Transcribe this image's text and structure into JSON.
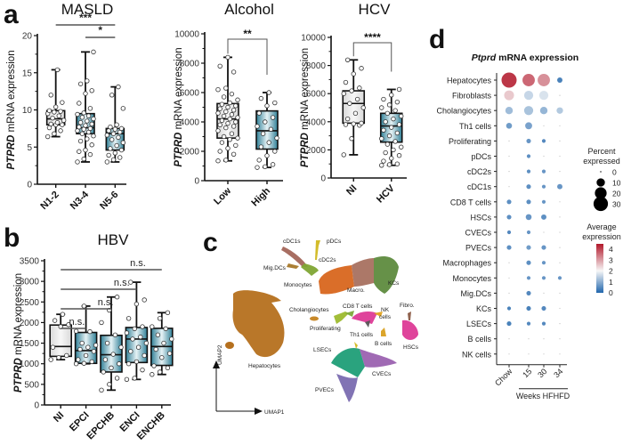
{
  "panel_letters": {
    "a": "a",
    "b": "b",
    "c": "c",
    "d": "d"
  },
  "chart_data": [
    {
      "id": "masld",
      "panel": "a",
      "type": "box",
      "title": "MASLD",
      "ylabel_italic": "PTPRD",
      "ylabel_rest": " mRNA expression",
      "ylim": [
        0,
        20
      ],
      "yticks": [
        0,
        5,
        10,
        15,
        20
      ],
      "categories": [
        "N1-2",
        "N3-4",
        "N5-6"
      ],
      "boxes": [
        {
          "min": 6.4,
          "q1": 8.0,
          "median": 8.8,
          "q3": 9.9,
          "max": 15.4,
          "fill": "light",
          "points": [
            6.4,
            6.8,
            7.2,
            7.6,
            8.0,
            8.0,
            8.1,
            8.3,
            8.6,
            8.9,
            9.2,
            9.5,
            9.7,
            9.8,
            9.9,
            10.4,
            11.0,
            12.0,
            15.4
          ]
        },
        {
          "min": 3.0,
          "q1": 6.8,
          "median": 7.6,
          "q3": 9.5,
          "max": 17.8,
          "fill": "teal",
          "points": [
            3.0,
            3.4,
            4.0,
            4.4,
            4.6,
            5.3,
            5.8,
            6.1,
            6.5,
            6.8,
            7.0,
            7.2,
            7.4,
            7.5,
            7.7,
            7.9,
            8.1,
            8.3,
            8.5,
            8.8,
            9.0,
            9.2,
            9.4,
            9.6,
            10.2,
            10.9,
            12.2,
            12.6,
            13.5,
            13.9,
            17.8
          ]
        },
        {
          "min": 3.0,
          "q1": 4.6,
          "median": 6.8,
          "q3": 7.5,
          "max": 13.1,
          "fill": "teal",
          "points": [
            3.0,
            3.3,
            3.6,
            3.9,
            4.2,
            4.6,
            4.8,
            5.2,
            5.6,
            6.0,
            6.3,
            6.6,
            6.8,
            7.0,
            7.2,
            7.4,
            7.5,
            7.7,
            8.0,
            10.2,
            12.0,
            13.1
          ]
        }
      ],
      "significance": [
        {
          "from": 0,
          "to": 2,
          "label": "***"
        },
        {
          "from": 1,
          "to": 2,
          "label": "*"
        }
      ]
    },
    {
      "id": "alcohol",
      "panel": "a",
      "type": "box",
      "title": "Alcohol",
      "ylabel_italic": "PTPRD",
      "ylabel_rest": " mRNA expression",
      "ylim": [
        0,
        10000
      ],
      "yticks": [
        0,
        2000,
        4000,
        6000,
        8000,
        10000
      ],
      "categories": [
        "Low",
        "High"
      ],
      "boxes": [
        {
          "min": 1350,
          "q1": 2900,
          "median": 4200,
          "q3": 5250,
          "max": 8400,
          "fill": "light",
          "points": [
            1350,
            1400,
            1800,
            2000,
            2200,
            2400,
            2600,
            2800,
            2900,
            3000,
            3200,
            3400,
            3600,
            3700,
            3800,
            3900,
            4000,
            4100,
            4200,
            4300,
            4400,
            4500,
            4600,
            4700,
            4800,
            4900,
            5000,
            5100,
            5200,
            5300,
            5500,
            5700,
            5900,
            6200,
            6300,
            7400,
            7800,
            8400
          ]
        },
        {
          "min": 900,
          "q1": 2150,
          "median": 3400,
          "q3": 4750,
          "max": 6000,
          "fill": "teal",
          "points": [
            900,
            950,
            1100,
            1400,
            1700,
            2000,
            2300,
            2600,
            2900,
            3200,
            3500,
            3700,
            4000,
            4300,
            4600,
            5100,
            5300,
            5600,
            6000
          ]
        }
      ],
      "significance": [
        {
          "from": 0,
          "to": 1,
          "label": "**",
          "bracket": true
        }
      ]
    },
    {
      "id": "hcv",
      "panel": "a",
      "type": "box",
      "title": "HCV",
      "ylabel_italic": "PTPRD",
      "ylabel_rest": " mRNA expression",
      "ylim": [
        0,
        10000
      ],
      "yticks": [
        0,
        2000,
        4000,
        6000,
        8000,
        10000
      ],
      "categories": [
        "NI",
        "HCV"
      ],
      "boxes": [
        {
          "min": 1650,
          "q1": 3900,
          "median": 5300,
          "q3": 6200,
          "max": 8400,
          "fill": "light",
          "points": [
            1650,
            2800,
            3750,
            3800,
            3850,
            3900,
            4200,
            4600,
            5000,
            5300,
            5600,
            6000,
            6200,
            6400,
            6800,
            7400,
            7800,
            8400
          ]
        },
        {
          "min": 900,
          "q1": 2550,
          "median": 3700,
          "q3": 4600,
          "max": 6300,
          "fill": "teal",
          "points": [
            900,
            950,
            1000,
            1200,
            1400,
            1600,
            1800,
            2000,
            2200,
            2400,
            2600,
            2800,
            3000,
            3200,
            3400,
            3600,
            3800,
            4000,
            4200,
            4400,
            4600,
            4800,
            5000,
            5200,
            5400,
            5600,
            5900,
            6300
          ]
        }
      ],
      "significance": [
        {
          "from": 0,
          "to": 1,
          "label": "****",
          "bracket": true
        }
      ]
    },
    {
      "id": "hbv",
      "panel": "b",
      "type": "box",
      "title": "HBV",
      "ylabel_italic": "PTPRD",
      "ylabel_rest": " mRNA expression",
      "ylim": [
        0,
        3500
      ],
      "yticks": [
        0,
        500,
        1000,
        1500,
        2000,
        2500,
        3000,
        3500
      ],
      "categories": [
        "NI",
        "EPCI",
        "EPCHB",
        "ENCI",
        "ENCHB"
      ],
      "boxes": [
        {
          "min": 1100,
          "q1": 1180,
          "median": 1420,
          "q3": 1940,
          "max": 2200,
          "fill": "light",
          "points": [
            1100,
            1150,
            1200,
            1400,
            1900,
            1950,
            2050,
            2200
          ]
        },
        {
          "min": 1000,
          "q1": 1010,
          "median": 1320,
          "q3": 1760,
          "max": 2400,
          "fill": "teal",
          "points": [
            1000,
            1010,
            1050,
            1100,
            1200,
            1300,
            1350,
            1400,
            1450,
            1500,
            1780,
            1790,
            2400
          ]
        },
        {
          "min": 360,
          "q1": 800,
          "median": 1220,
          "q3": 1690,
          "max": 2620,
          "fill": "teal",
          "points": [
            360,
            500,
            650,
            800,
            900,
            1000,
            1100,
            1230,
            1400,
            1500,
            1700,
            2000,
            2300,
            2620
          ]
        },
        {
          "min": 620,
          "q1": 1030,
          "median": 1600,
          "q3": 1880,
          "max": 2980,
          "fill": "teal",
          "points": [
            620,
            650,
            850,
            1000,
            1050,
            1200,
            1300,
            1400,
            1500,
            1600,
            1650,
            1750,
            1850,
            1900,
            2100,
            2450,
            2550,
            2980
          ]
        },
        {
          "min": 740,
          "q1": 960,
          "median": 1420,
          "q3": 1860,
          "max": 2240,
          "fill": "teal",
          "points": [
            740,
            800,
            900,
            950,
            1150,
            1250,
            1350,
            1500,
            1600,
            1700,
            1850,
            1900,
            2100,
            2240
          ]
        }
      ],
      "significance": [
        {
          "from": 0,
          "to": 1,
          "label": "n.s."
        },
        {
          "from": 0,
          "to": 2,
          "label": "n.s."
        },
        {
          "from": 0,
          "to": 3,
          "label": "n.s."
        },
        {
          "from": 0,
          "to": 4,
          "label": "n.s."
        }
      ]
    },
    {
      "id": "umap",
      "panel": "c",
      "type": "scatter",
      "xlabel": "UMAP1",
      "ylabel": "UMAP2",
      "clusters": [
        {
          "label": "Hepatocytes",
          "color": "#b5701e"
        },
        {
          "label": "cDC1s",
          "color": "#a3665a"
        },
        {
          "label": "pDCs",
          "color": "#d1b820"
        },
        {
          "label": "cDC2s",
          "color": "#7fa534"
        },
        {
          "label": "Mig.DCs",
          "color": "#a7782a"
        },
        {
          "label": "Monocytes",
          "color": "#d8661e"
        },
        {
          "label": "Macro.",
          "color": "#a87160"
        },
        {
          "label": "KCs",
          "color": "#5e8b3e"
        },
        {
          "label": "Cholangiocytes",
          "color": "#c8892a"
        },
        {
          "label": "Proliferating",
          "color": "#9dbb2e"
        },
        {
          "label": "CD8 T cells",
          "color": "#7ca93a"
        },
        {
          "label": "NK cells",
          "color": "#e0a21c"
        },
        {
          "label": "Th1 cells",
          "color": "#555555"
        },
        {
          "label": "B cells",
          "color": "#d9a020"
        },
        {
          "label": "Fibro.",
          "color": "#8a5a44"
        },
        {
          "label": "HSCs",
          "color": "#dd3a96"
        },
        {
          "label": "LSECs",
          "color": "#1f9e77"
        },
        {
          "label": "CVECs",
          "color": "#9b62b0"
        },
        {
          "label": "PVECs",
          "color": "#7a6cb0"
        }
      ]
    },
    {
      "id": "dotplot",
      "panel": "d",
      "type": "dot",
      "title_italic": "Ptprd",
      "title_rest": " mRNA expression",
      "rows": [
        "Hepatocytes",
        "Fibroblasts",
        "Cholangiocytes",
        "Th1 cells",
        "Proliferating",
        "pDCs",
        "cDC2s",
        "cDC1s",
        "CD8 T cells",
        "HSCs",
        "CVECs",
        "PVECs",
        "Macrophages",
        "Monocytes",
        "Mig.DCs",
        "KCs",
        "LSECs",
        "B cells",
        "NK cells"
      ],
      "columns": [
        "Chow",
        "15",
        "30",
        "34"
      ],
      "group_label": "Weeks HFHFD",
      "percent_expressed": [
        [
          33,
          22,
          22,
          4
        ],
        [
          14,
          12,
          12,
          0.5
        ],
        [
          8,
          12,
          8,
          6
        ],
        [
          5,
          7,
          0.5,
          0.5
        ],
        [
          0.5,
          3,
          2,
          0.5
        ],
        [
          0.5,
          2,
          0.5,
          0.5
        ],
        [
          0.5,
          2,
          2,
          0.5
        ],
        [
          0.5,
          3,
          2,
          4
        ],
        [
          3,
          3,
          2,
          0.5
        ],
        [
          3,
          5,
          4,
          0.5
        ],
        [
          2,
          2,
          0.5,
          0.5
        ],
        [
          3,
          3,
          3,
          0.5
        ],
        [
          0.5,
          3,
          2,
          0.5
        ],
        [
          0.5,
          2,
          2,
          2
        ],
        [
          0.5,
          3,
          0.5,
          0.5
        ],
        [
          2,
          3,
          3,
          0.5
        ],
        [
          3,
          2,
          2,
          0.5
        ],
        [
          0.5,
          0.5,
          0.5,
          0.5
        ],
        [
          0.5,
          0.5,
          0.5,
          0.5
        ]
      ],
      "average_expression": [
        [
          4.4,
          3.8,
          3.3,
          0.2
        ],
        [
          2.6,
          1.5,
          1.7,
          1.5
        ],
        [
          1.1,
          1.2,
          1.0,
          1.3
        ],
        [
          0.6,
          0.7,
          1.5,
          1.5
        ],
        [
          1.5,
          0.5,
          0.3,
          1.5
        ],
        [
          1.5,
          0.4,
          1.5,
          1.5
        ],
        [
          1.5,
          0.4,
          0.5,
          1.5
        ],
        [
          1.5,
          0.4,
          0.5,
          0.5
        ],
        [
          0.4,
          0.4,
          0.5,
          1.5
        ],
        [
          0.4,
          0.5,
          0.4,
          1.5
        ],
        [
          0.3,
          0.5,
          1.5,
          1.5
        ],
        [
          0.4,
          0.6,
          0.5,
          1.5
        ],
        [
          1.5,
          0.4,
          0.5,
          1.5
        ],
        [
          1.5,
          0.5,
          0.5,
          0.5
        ],
        [
          1.5,
          0.3,
          1.5,
          1.5
        ],
        [
          0.2,
          0.2,
          0.3,
          1.5
        ],
        [
          0.2,
          0.3,
          0.3,
          1.5
        ],
        [
          1.5,
          1.5,
          1.5,
          1.5
        ],
        [
          1.5,
          1.5,
          1.5,
          1.5
        ]
      ],
      "size_legend": {
        "title_line1": "Percent",
        "title_line2": "expressed",
        "values": [
          0,
          10,
          20,
          30
        ]
      },
      "color_legend": {
        "title_line1": "Average",
        "title_line2": "expression",
        "ticks": [
          4,
          3,
          2,
          1,
          0
        ],
        "range": [
          0,
          4.5
        ],
        "colors": [
          "#2166ac",
          "#f7f7f7",
          "#b2182b"
        ]
      }
    }
  ]
}
